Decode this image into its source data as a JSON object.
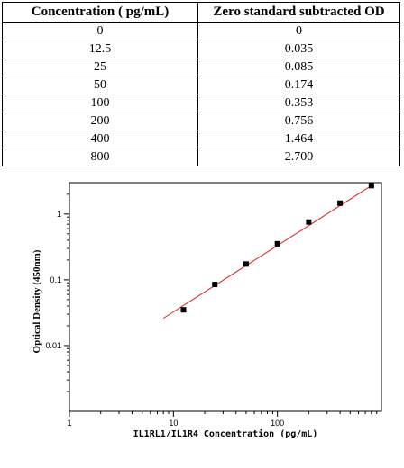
{
  "table": {
    "headers": [
      "Concentration ( pg/mL)",
      "Zero standard subtracted OD"
    ],
    "rows": [
      [
        "0",
        "0"
      ],
      [
        "12.5",
        "0.035"
      ],
      [
        "25",
        "0.085"
      ],
      [
        "50",
        "0.174"
      ],
      [
        "100",
        "0.353"
      ],
      [
        "200",
        "0.756"
      ],
      [
        "400",
        "1.464"
      ],
      [
        "800",
        "2.700"
      ]
    ]
  },
  "chart_data": {
    "type": "scatter",
    "title": "",
    "xlabel": "IL1RL1/IL1R4 Concentration (pg/mL)",
    "ylabel": "Optical Density (450nm)",
    "xscale": "log",
    "yscale": "log",
    "xlim": [
      1,
      1000
    ],
    "ylim": [
      0.001,
      3
    ],
    "xticks": [
      "1",
      "10",
      "100"
    ],
    "yticks": [
      "0.01",
      "0.1",
      "1"
    ],
    "grid": false,
    "series": [
      {
        "x": [
          12.5,
          25,
          50,
          100,
          200,
          400,
          800
        ],
        "y": [
          0.035,
          0.085,
          0.174,
          0.353,
          0.756,
          1.464,
          2.7
        ],
        "marker": "square",
        "color": "#000000"
      }
    ],
    "fit_line": {
      "x": [
        8,
        800
      ],
      "y": [
        0.026,
        2.7
      ],
      "color": "#e02020"
    }
  }
}
